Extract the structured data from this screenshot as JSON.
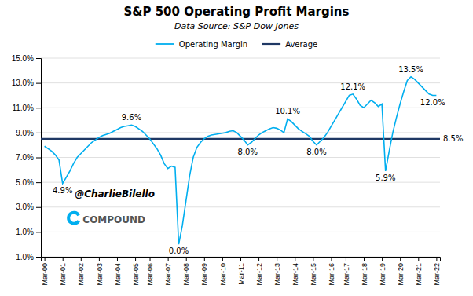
{
  "chart_data": {
    "type": "line",
    "title": "S&P 500 Operating Profit Margins",
    "subtitle": "Data Source: S&P Dow Jones",
    "watermarks": [
      "@CharlieBilello",
      "COMPOUND"
    ],
    "categories": [
      "Mar-00",
      null,
      null,
      null,
      null,
      "Mar-01",
      null,
      null,
      null,
      null,
      "Mar-02",
      null,
      null,
      null,
      null,
      "Mar-03",
      null,
      null,
      null,
      null,
      "Mar-04",
      null,
      null,
      null,
      null,
      "Mar-05",
      null,
      null,
      null,
      "Mar-06",
      null,
      null,
      null,
      null,
      "Mar-07",
      null,
      null,
      null,
      null,
      "Mar-08",
      null,
      null,
      null,
      null,
      "Mar-09",
      null,
      null,
      null,
      null,
      "Mar-10",
      null,
      null,
      null,
      null,
      "Mar-11",
      null,
      null,
      null,
      null,
      "Mar-12",
      null,
      null,
      null,
      null,
      "Mar-13",
      null,
      null,
      null,
      null,
      "Mar-14",
      null,
      null,
      null,
      null,
      "Mar-15",
      null,
      null,
      null,
      null,
      "Mar-16",
      null,
      null,
      null,
      "Mar-17",
      null,
      null,
      null,
      null,
      "Mar-18",
      null,
      null,
      null,
      null,
      "Mar-19",
      null,
      null,
      null,
      null,
      "Mar-20",
      null,
      null,
      null,
      null,
      "Mar-21",
      null,
      null,
      null,
      null,
      "Mar-22"
    ],
    "series": [
      {
        "name": "Operating Margin",
        "color": "#00AEEF",
        "values": [
          7.9,
          7.7,
          7.5,
          7.2,
          6.8,
          4.9,
          5.4,
          5.9,
          6.5,
          7.0,
          7.3,
          7.6,
          7.9,
          8.2,
          8.4,
          8.6,
          8.75,
          8.85,
          8.95,
          9.1,
          9.25,
          9.4,
          9.5,
          9.55,
          9.6,
          9.5,
          9.3,
          9.1,
          8.8,
          8.5,
          8.1,
          7.7,
          7.2,
          6.5,
          6.1,
          6.3,
          6.2,
          0.0,
          1.5,
          3.5,
          5.5,
          7.0,
          7.8,
          8.2,
          8.5,
          8.7,
          8.8,
          8.85,
          8.9,
          8.95,
          9.0,
          9.1,
          9.15,
          9.0,
          8.7,
          8.4,
          8.0,
          8.2,
          8.5,
          8.8,
          9.0,
          9.15,
          9.3,
          9.4,
          9.35,
          9.2,
          9.0,
          10.1,
          9.9,
          9.6,
          9.3,
          9.1,
          8.9,
          8.7,
          8.3,
          8.0,
          8.3,
          8.6,
          9.0,
          9.5,
          10.0,
          10.5,
          11.0,
          11.5,
          12.0,
          12.1,
          11.7,
          11.2,
          11.0,
          11.3,
          11.6,
          11.4,
          11.1,
          11.3,
          5.9,
          7.5,
          9.0,
          10.2,
          11.3,
          12.3,
          13.2,
          13.5,
          13.3,
          13.0,
          12.7,
          12.4,
          12.1,
          12.0,
          12.0
        ]
      }
    ],
    "average": {
      "name": "Average",
      "color": "#1F3864",
      "value": 8.5,
      "label": "8.5%"
    },
    "annotations": [
      {
        "text": "4.9%",
        "y": 4.9
      },
      {
        "text": "9.6%",
        "y": 9.6
      },
      {
        "text": "0.0%",
        "y": 0.0
      },
      {
        "text": "8.0%",
        "y": 8.0
      },
      {
        "text": "10.1%",
        "y": 10.1
      },
      {
        "text": "8.0%",
        "y": 8.0
      },
      {
        "text": "12.1%",
        "y": 12.1
      },
      {
        "text": "5.9%",
        "y": 5.9
      },
      {
        "text": "13.5%",
        "y": 13.5
      },
      {
        "text": "12.0%",
        "y": 12.0
      }
    ],
    "ylim": [
      -1.0,
      15.0
    ],
    "yticks": [
      {
        "value": -1.0,
        "label": "-1.0%"
      },
      {
        "value": 1.0,
        "label": "1.0%"
      },
      {
        "value": 3.0,
        "label": "3.0%"
      },
      {
        "value": 5.0,
        "label": "5.0%"
      },
      {
        "value": 7.0,
        "label": "7.0%"
      },
      {
        "value": 9.0,
        "label": "9.0%"
      },
      {
        "value": 11.0,
        "label": "11.0%"
      },
      {
        "value": 13.0,
        "label": "13.0%"
      },
      {
        "value": 15.0,
        "label": "15.0%"
      }
    ],
    "grid": true,
    "legend": "top"
  }
}
